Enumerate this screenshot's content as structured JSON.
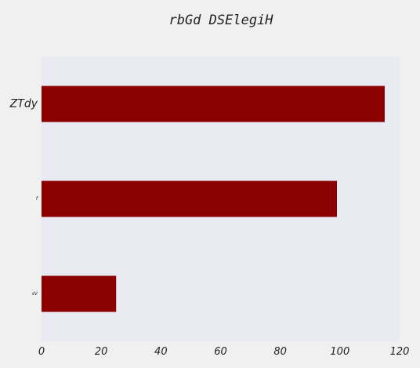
{
  "chart_data": {
    "type": "bar",
    "orientation": "horizontal",
    "title": "rbGd DSElegiH",
    "categories": [
      "ZTdy",
      "f",
      "sV"
    ],
    "values": [
      115,
      99,
      25
    ],
    "xlim": [
      0,
      120
    ],
    "xticks": [
      0,
      20,
      40,
      60,
      80,
      100,
      120
    ],
    "grid": false,
    "bar_color": "#8b0000",
    "plot_background": "#eaeaf2"
  }
}
